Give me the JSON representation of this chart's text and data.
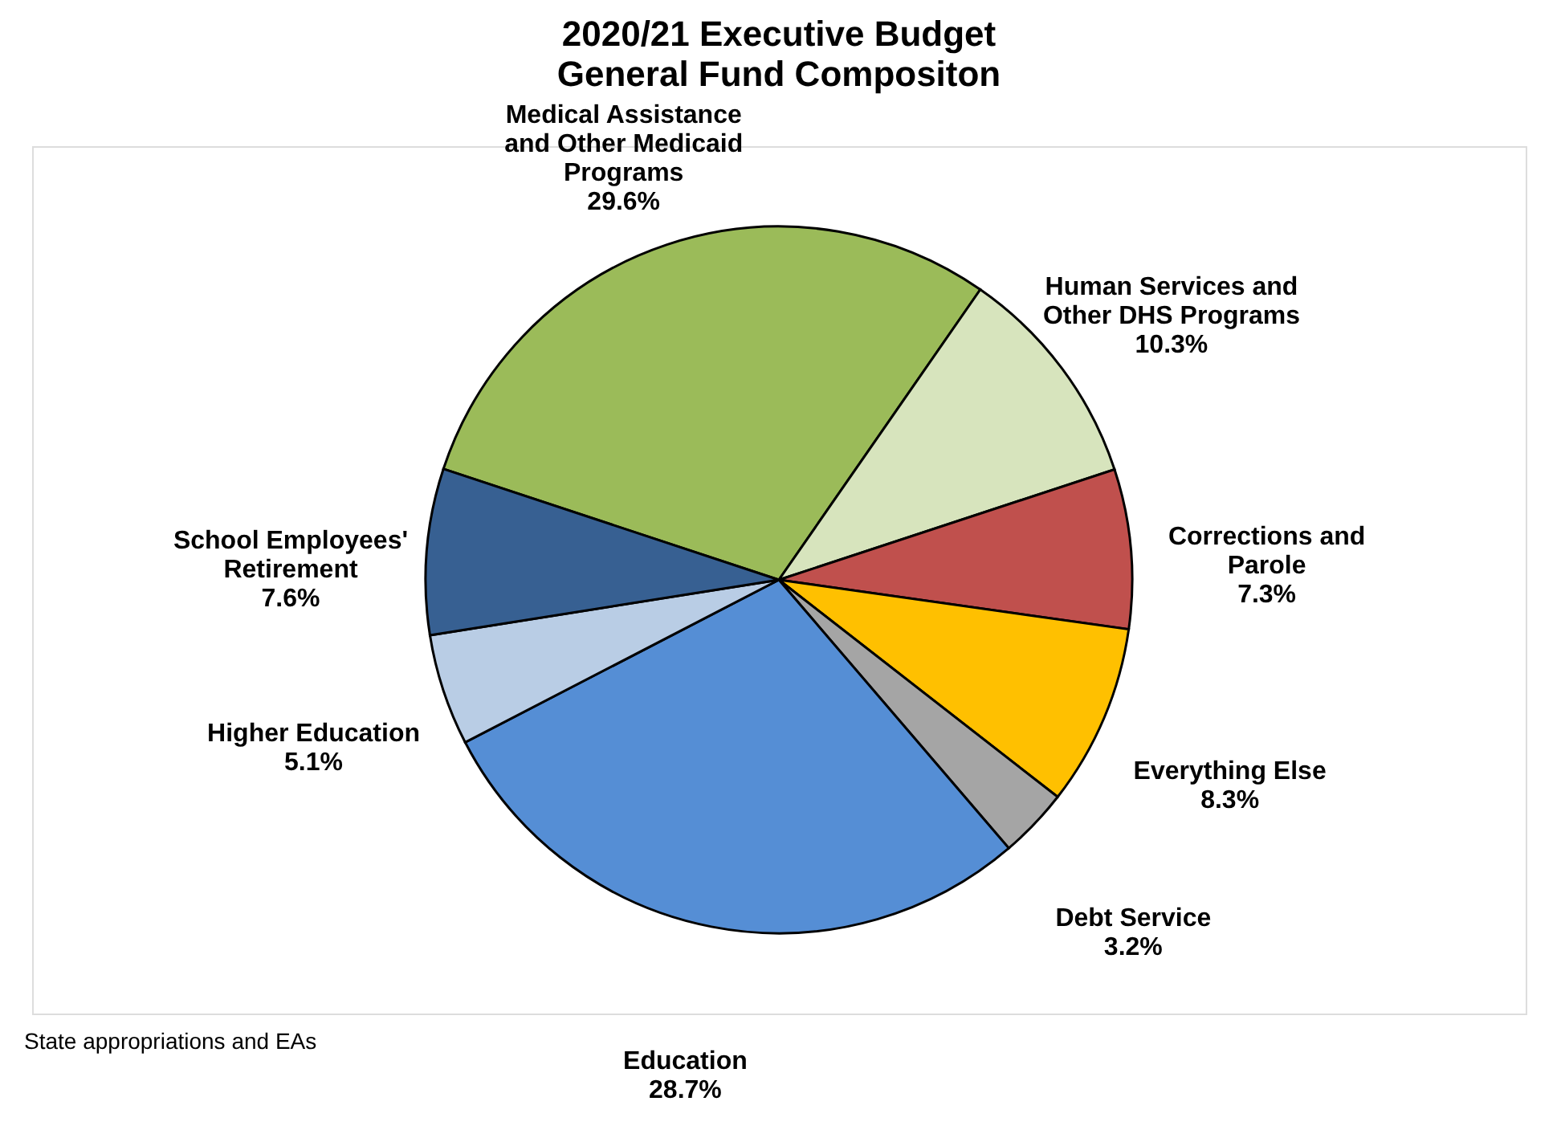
{
  "chart_data": {
    "type": "pie",
    "title": "2020/21 Executive Budget",
    "subtitle": "General Fund Compositon",
    "categories": [
      "Medical Assistance and Other Medicaid Programs",
      "Human Services and Other DHS Programs",
      "Corrections and Parole",
      "Everything Else",
      "Debt Service",
      "Education",
      "Higher Education",
      "School Employees' Retirement"
    ],
    "values": [
      29.6,
      10.3,
      7.3,
      8.3,
      3.2,
      28.7,
      5.1,
      7.6
    ],
    "value_labels": [
      "29.6%",
      "10.3%",
      "7.3%",
      "8.3%",
      "3.2%",
      "28.7%",
      "5.1%",
      "7.6%"
    ],
    "colors": [
      "#9bbb59",
      "#d7e4bd",
      "#c0504d",
      "#ffc000",
      "#a5a5a5",
      "#558ed5",
      "#b9cde5",
      "#376092"
    ],
    "annotations": [
      "State appropriations and EAs"
    ],
    "legend": false
  }
}
